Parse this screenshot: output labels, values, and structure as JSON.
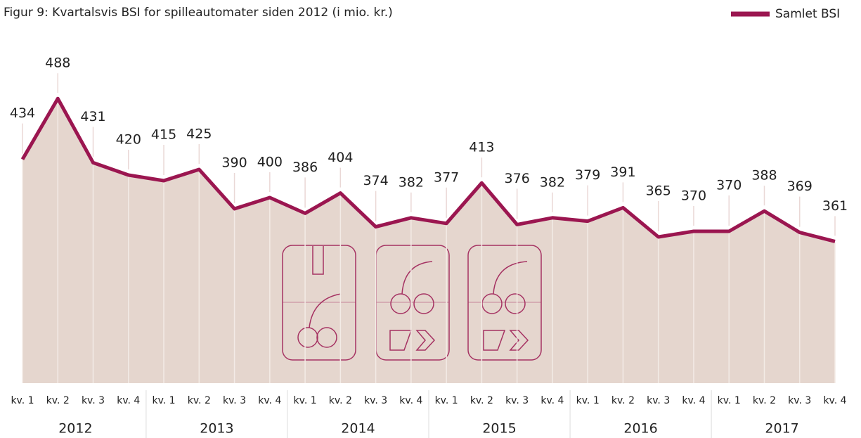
{
  "chart_data": {
    "type": "line",
    "title": "Figur 9: Kvartalsvis BSI for spilleautomater siden 2012 (i mio. kr.)",
    "categories": [
      "kv. 1",
      "kv. 2",
      "kv. 3",
      "kv. 4",
      "kv. 1",
      "kv. 2",
      "kv. 3",
      "kv. 4",
      "kv. 1",
      "kv. 2",
      "kv. 3",
      "kv. 4",
      "kv. 1",
      "kv. 2",
      "kv. 3",
      "kv. 4",
      "kv. 1",
      "kv. 2",
      "kv. 3",
      "kv. 4",
      "kv. 1",
      "kv. 2",
      "kv. 3",
      "kv. 4"
    ],
    "groups": [
      "2012",
      "2013",
      "2014",
      "2015",
      "2016",
      "2017"
    ],
    "series": [
      {
        "name": "Samlet BSI",
        "color": "#9b1650",
        "values": [
          434,
          488,
          431,
          420,
          415,
          425,
          390,
          400,
          386,
          404,
          374,
          382,
          377,
          413,
          376,
          382,
          379,
          391,
          365,
          370,
          370,
          388,
          369,
          361
        ]
      }
    ],
    "area_color": "#e5d6ce",
    "ylim": [
      235,
      500
    ],
    "legend": "top-right"
  }
}
